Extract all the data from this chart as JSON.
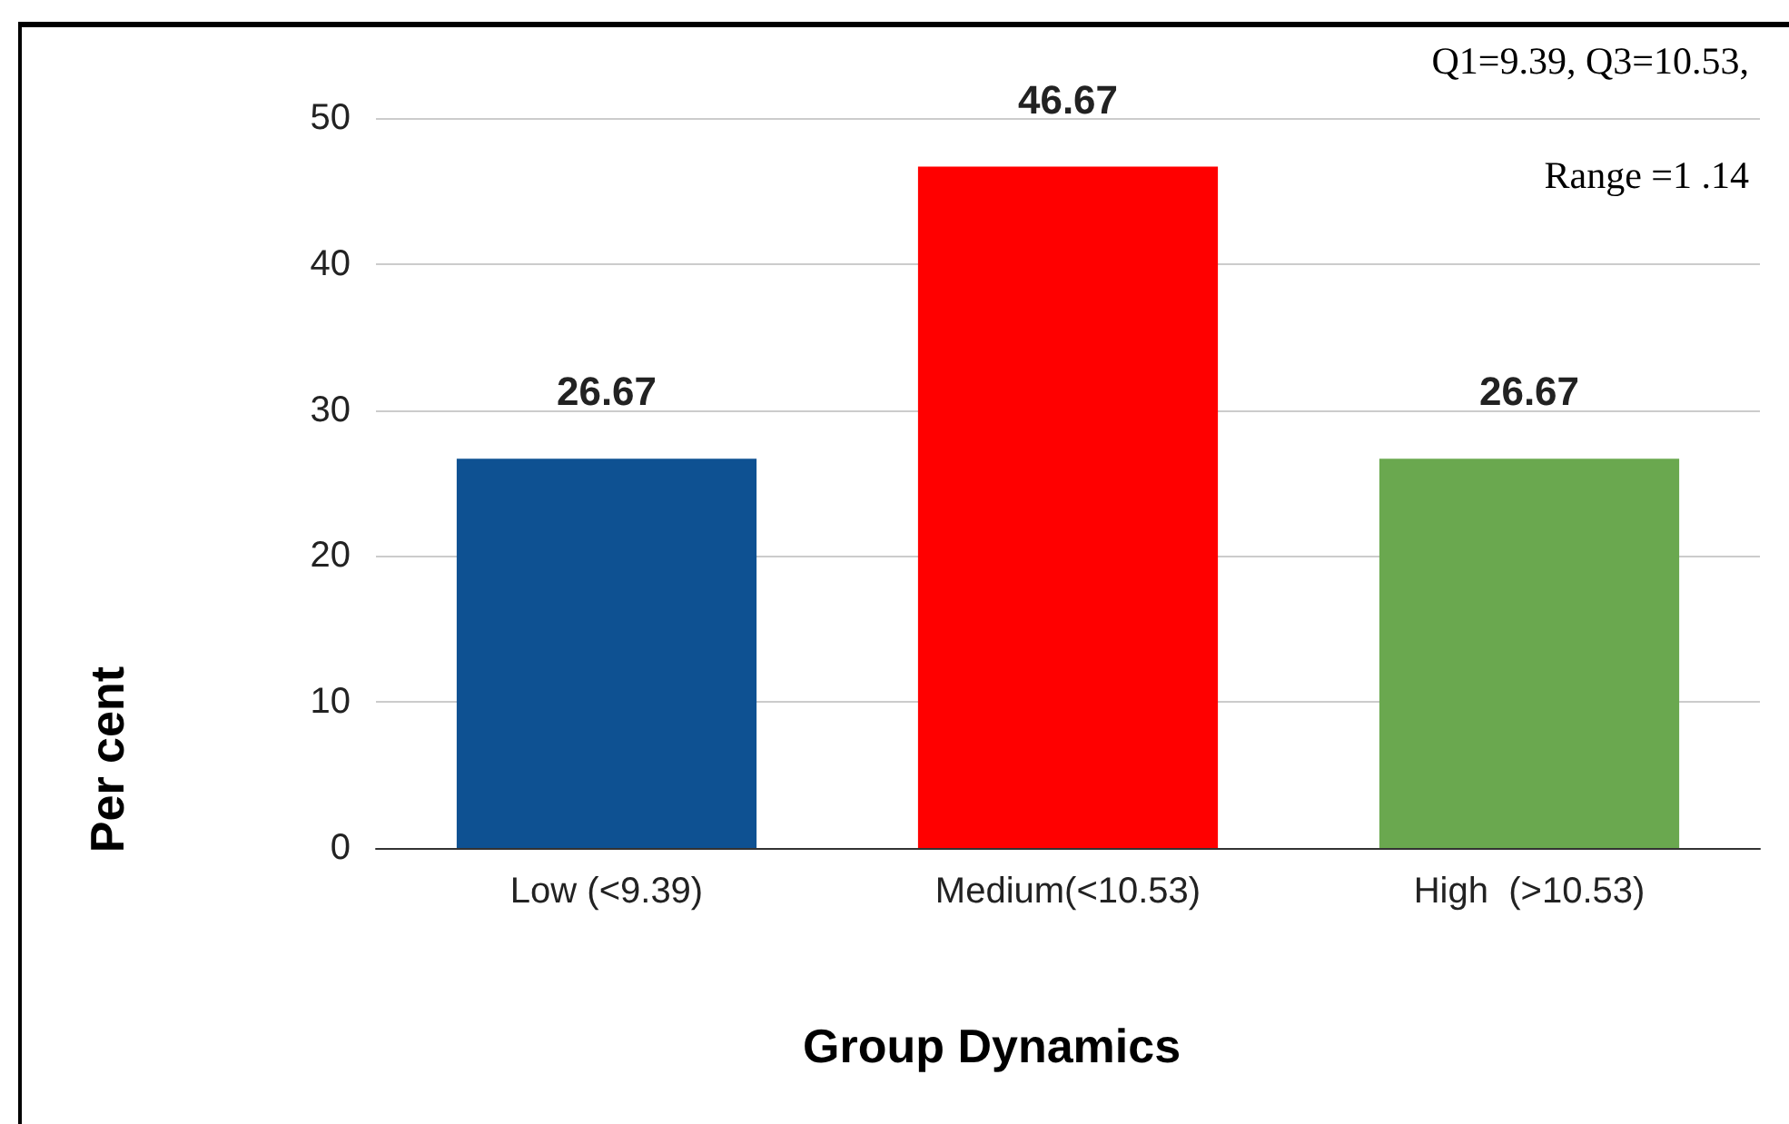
{
  "chart_data": {
    "type": "bar",
    "xlabel": "Group Dynamics",
    "ylabel": "Per cent",
    "categories": [
      "Low (<9.39)",
      "Medium(<10.53)",
      "High  (>10.53)"
    ],
    "values": [
      26.67,
      46.67,
      26.67
    ],
    "colors": [
      "#0e5192",
      "#ff0000",
      "#6aa84f"
    ],
    "ylim": [
      0,
      50
    ],
    "yticks": [
      0,
      10,
      20,
      30,
      40,
      50
    ],
    "grid": "y",
    "data_labels": true,
    "annotations": [
      "Q1=9.39, Q3=10.53,",
      "Range =1 .14"
    ]
  }
}
